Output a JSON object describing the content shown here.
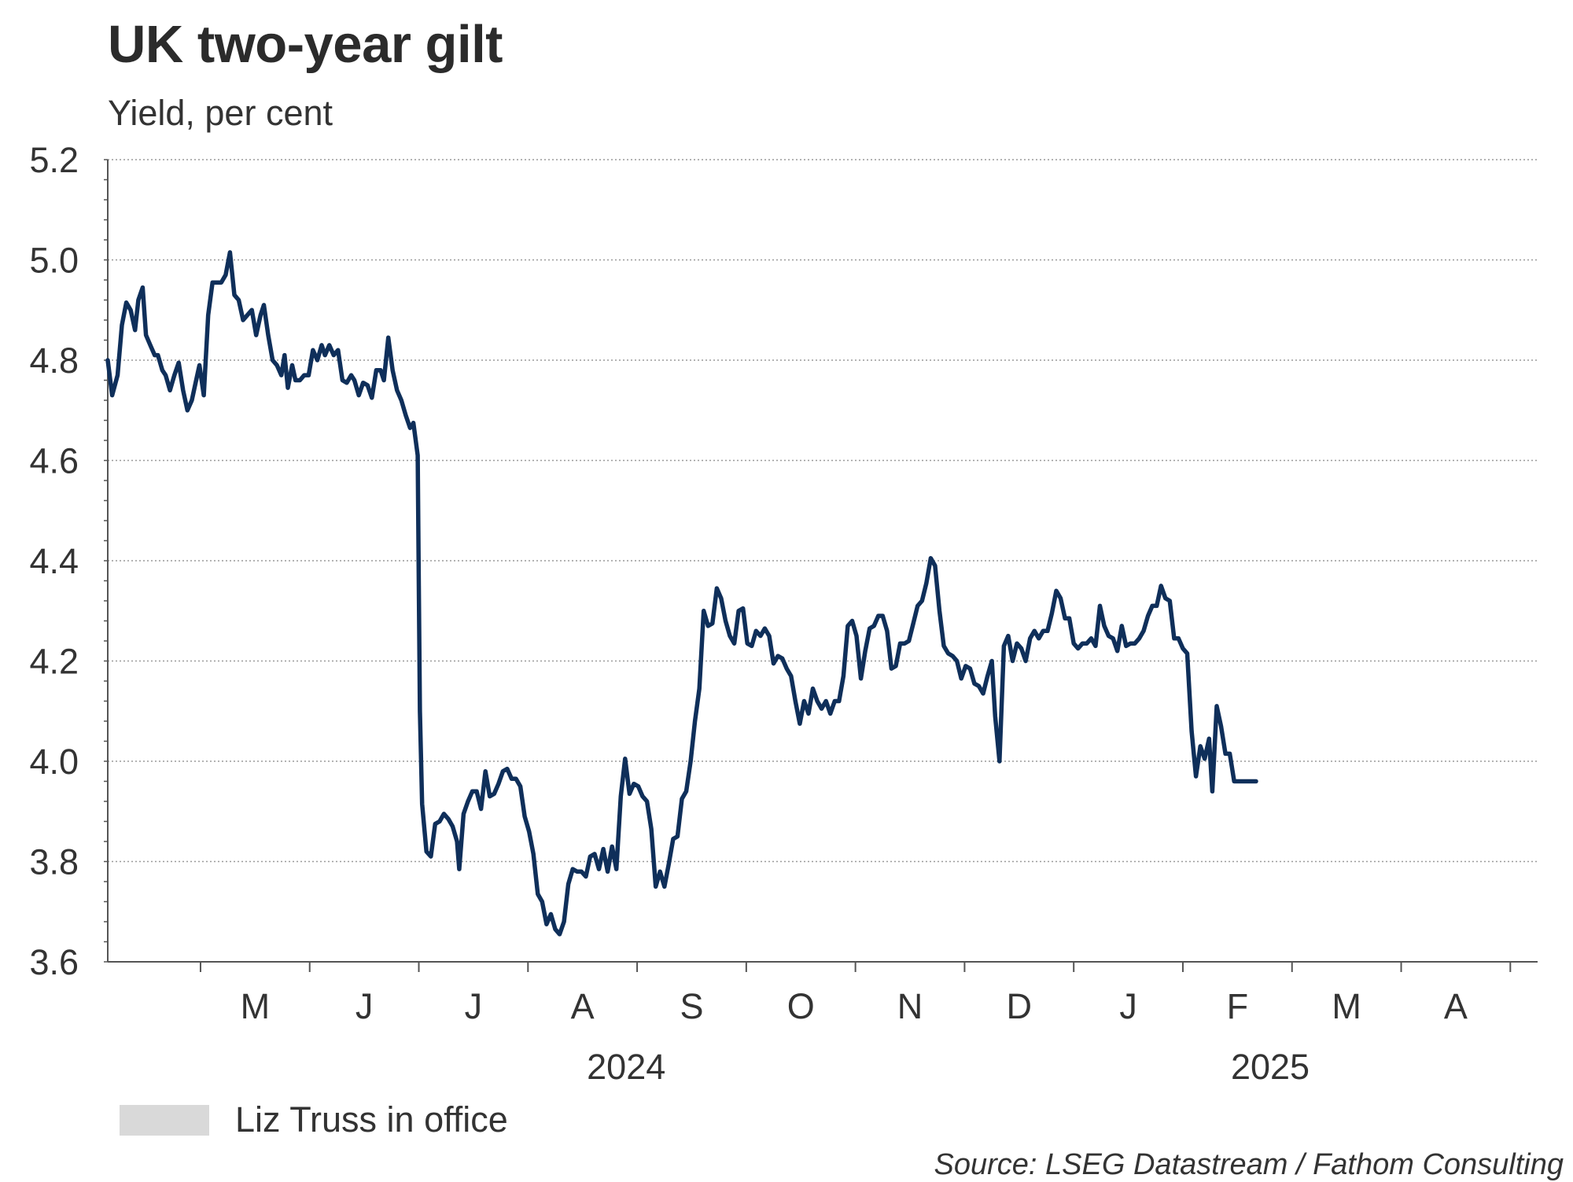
{
  "title": "UK two-year gilt",
  "subtitle": "Yield, per cent",
  "legend": {
    "label": "Liz Truss in office",
    "swatch_color": "#d9d9d9"
  },
  "source": "Source: LSEG Datastream / Fathom Consulting",
  "chart_data": {
    "type": "line",
    "title": "UK two-year gilt",
    "ylabel": "Yield, per cent",
    "xlabel": "",
    "ylim": [
      3.6,
      5.2
    ],
    "yticks": [
      3.6,
      3.8,
      4.0,
      4.2,
      4.4,
      4.6,
      4.8,
      5.0,
      5.2
    ],
    "ytick_labels": [
      "3.6",
      "3.8",
      "4.0",
      "4.2",
      "4.4",
      "4.6",
      "4.8",
      "5.0",
      "5.2"
    ],
    "month_labels": [
      {
        "label": "M",
        "x": 1.0
      },
      {
        "label": "J",
        "x": 2.0
      },
      {
        "label": "J",
        "x": 3.0
      },
      {
        "label": "A",
        "x": 4.0
      },
      {
        "label": "S",
        "x": 5.0
      },
      {
        "label": "O",
        "x": 6.0
      },
      {
        "label": "N",
        "x": 7.0
      },
      {
        "label": "D",
        "x": 8.0
      },
      {
        "label": "J",
        "x": 9.0
      },
      {
        "label": "F",
        "x": 10.0
      },
      {
        "label": "M",
        "x": 11.0
      },
      {
        "label": "A",
        "x": 12.0
      }
    ],
    "year_labels": [
      {
        "label": "2024",
        "x": 4.4
      },
      {
        "label": "2025",
        "x": 10.3
      }
    ],
    "xlim": [
      -0.35,
      12.75
    ],
    "grid": true,
    "line_color": "#0f2f5a",
    "series": [
      {
        "name": "UK two-year gilt yield",
        "points": [
          [
            -0.35,
            4.8
          ],
          [
            -0.31,
            4.73
          ],
          [
            -0.26,
            4.77
          ],
          [
            -0.22,
            4.87
          ],
          [
            -0.18,
            4.915
          ],
          [
            -0.14,
            4.9
          ],
          [
            -0.1,
            4.86
          ],
          [
            -0.07,
            4.92
          ],
          [
            -0.03,
            4.945
          ],
          [
            0.0,
            4.85
          ],
          [
            0.04,
            4.83
          ],
          [
            0.08,
            4.81
          ],
          [
            0.11,
            4.81
          ],
          [
            0.15,
            4.78
          ],
          [
            0.18,
            4.77
          ],
          [
            0.22,
            4.74
          ],
          [
            0.26,
            4.77
          ],
          [
            0.3,
            4.795
          ],
          [
            0.34,
            4.74
          ],
          [
            0.38,
            4.7
          ],
          [
            0.42,
            4.72
          ],
          [
            0.46,
            4.76
          ],
          [
            0.49,
            4.79
          ],
          [
            0.53,
            4.73
          ],
          [
            0.57,
            4.89
          ],
          [
            0.61,
            4.955
          ],
          [
            0.65,
            4.955
          ],
          [
            0.69,
            4.955
          ],
          [
            0.73,
            4.97
          ],
          [
            0.77,
            5.015
          ],
          [
            0.81,
            4.93
          ],
          [
            0.85,
            4.92
          ],
          [
            0.89,
            4.88
          ],
          [
            0.93,
            4.89
          ],
          [
            0.97,
            4.9
          ],
          [
            1.01,
            4.85
          ],
          [
            1.05,
            4.89
          ],
          [
            1.08,
            4.91
          ],
          [
            1.12,
            4.85
          ],
          [
            1.16,
            4.8
          ],
          [
            1.2,
            4.79
          ],
          [
            1.24,
            4.77
          ],
          [
            1.27,
            4.81
          ],
          [
            1.3,
            4.745
          ],
          [
            1.34,
            4.79
          ],
          [
            1.37,
            4.76
          ],
          [
            1.41,
            4.76
          ],
          [
            1.45,
            4.77
          ],
          [
            1.49,
            4.77
          ],
          [
            1.53,
            4.82
          ],
          [
            1.57,
            4.8
          ],
          [
            1.61,
            4.83
          ],
          [
            1.64,
            4.81
          ],
          [
            1.68,
            4.83
          ],
          [
            1.72,
            4.81
          ],
          [
            1.76,
            4.82
          ],
          [
            1.8,
            4.76
          ],
          [
            1.84,
            4.755
          ],
          [
            1.88,
            4.77
          ],
          [
            1.91,
            4.76
          ],
          [
            1.95,
            4.73
          ],
          [
            1.99,
            4.755
          ],
          [
            2.03,
            4.75
          ],
          [
            2.07,
            4.725
          ],
          [
            2.11,
            4.78
          ],
          [
            2.15,
            4.78
          ],
          [
            2.18,
            4.76
          ],
          [
            2.22,
            4.845
          ],
          [
            2.26,
            4.78
          ],
          [
            2.3,
            4.74
          ],
          [
            2.34,
            4.72
          ],
          [
            2.38,
            4.69
          ],
          [
            2.42,
            4.665
          ],
          [
            2.45,
            4.675
          ],
          [
            2.49,
            4.61
          ],
          [
            2.5,
            4.35
          ],
          [
            2.51,
            4.1
          ],
          [
            2.53,
            3.915
          ],
          [
            2.57,
            3.82
          ],
          [
            2.61,
            3.81
          ],
          [
            2.65,
            3.875
          ],
          [
            2.69,
            3.88
          ],
          [
            2.73,
            3.895
          ],
          [
            2.77,
            3.885
          ],
          [
            2.81,
            3.87
          ],
          [
            2.85,
            3.84
          ],
          [
            2.87,
            3.785
          ],
          [
            2.91,
            3.895
          ],
          [
            2.95,
            3.92
          ],
          [
            2.99,
            3.94
          ],
          [
            3.03,
            3.94
          ],
          [
            3.07,
            3.905
          ],
          [
            3.11,
            3.98
          ],
          [
            3.15,
            3.93
          ],
          [
            3.19,
            3.935
          ],
          [
            3.23,
            3.955
          ],
          [
            3.27,
            3.98
          ],
          [
            3.31,
            3.985
          ],
          [
            3.35,
            3.965
          ],
          [
            3.39,
            3.965
          ],
          [
            3.43,
            3.95
          ],
          [
            3.47,
            3.89
          ],
          [
            3.51,
            3.86
          ],
          [
            3.55,
            3.815
          ],
          [
            3.59,
            3.735
          ],
          [
            3.63,
            3.72
          ],
          [
            3.67,
            3.675
          ],
          [
            3.71,
            3.695
          ],
          [
            3.75,
            3.665
          ],
          [
            3.79,
            3.655
          ],
          [
            3.83,
            3.68
          ],
          [
            3.87,
            3.755
          ],
          [
            3.91,
            3.785
          ],
          [
            3.95,
            3.78
          ],
          [
            3.99,
            3.78
          ],
          [
            4.03,
            3.77
          ],
          [
            4.07,
            3.81
          ],
          [
            4.11,
            3.815
          ],
          [
            4.15,
            3.785
          ],
          [
            4.19,
            3.825
          ],
          [
            4.23,
            3.78
          ],
          [
            4.27,
            3.83
          ],
          [
            4.31,
            3.785
          ],
          [
            4.35,
            3.93
          ],
          [
            4.39,
            4.005
          ],
          [
            4.43,
            3.935
          ],
          [
            4.47,
            3.955
          ],
          [
            4.51,
            3.95
          ],
          [
            4.55,
            3.93
          ],
          [
            4.59,
            3.92
          ],
          [
            4.63,
            3.865
          ],
          [
            4.67,
            3.75
          ],
          [
            4.71,
            3.78
          ],
          [
            4.75,
            3.75
          ],
          [
            4.79,
            3.795
          ],
          [
            4.83,
            3.845
          ],
          [
            4.87,
            3.85
          ],
          [
            4.91,
            3.925
          ],
          [
            4.95,
            3.94
          ],
          [
            4.99,
            4.0
          ],
          [
            5.03,
            4.08
          ],
          [
            5.07,
            4.145
          ],
          [
            5.11,
            4.3
          ],
          [
            5.15,
            4.27
          ],
          [
            5.19,
            4.275
          ],
          [
            5.23,
            4.345
          ],
          [
            5.27,
            4.325
          ],
          [
            5.31,
            4.28
          ],
          [
            5.35,
            4.25
          ],
          [
            5.39,
            4.235
          ],
          [
            5.43,
            4.3
          ],
          [
            5.47,
            4.305
          ],
          [
            5.51,
            4.235
          ],
          [
            5.55,
            4.23
          ],
          [
            5.59,
            4.26
          ],
          [
            5.63,
            4.25
          ],
          [
            5.67,
            4.265
          ],
          [
            5.71,
            4.25
          ],
          [
            5.75,
            4.195
          ],
          [
            5.79,
            4.21
          ],
          [
            5.83,
            4.205
          ],
          [
            5.87,
            4.185
          ],
          [
            5.91,
            4.17
          ],
          [
            5.95,
            4.12
          ],
          [
            5.99,
            4.075
          ],
          [
            6.03,
            4.12
          ],
          [
            6.07,
            4.095
          ],
          [
            6.11,
            4.145
          ],
          [
            6.15,
            4.12
          ],
          [
            6.19,
            4.105
          ],
          [
            6.23,
            4.12
          ],
          [
            6.27,
            4.095
          ],
          [
            6.31,
            4.12
          ],
          [
            6.35,
            4.12
          ],
          [
            6.39,
            4.17
          ],
          [
            6.43,
            4.27
          ],
          [
            6.47,
            4.28
          ],
          [
            6.51,
            4.25
          ],
          [
            6.55,
            4.165
          ],
          [
            6.59,
            4.22
          ],
          [
            6.63,
            4.265
          ],
          [
            6.67,
            4.27
          ],
          [
            6.71,
            4.29
          ],
          [
            6.75,
            4.29
          ],
          [
            6.79,
            4.26
          ],
          [
            6.83,
            4.185
          ],
          [
            6.87,
            4.19
          ],
          [
            6.91,
            4.235
          ],
          [
            6.95,
            4.235
          ],
          [
            6.99,
            4.24
          ],
          [
            7.03,
            4.275
          ],
          [
            7.07,
            4.31
          ],
          [
            7.11,
            4.32
          ],
          [
            7.15,
            4.355
          ],
          [
            7.19,
            4.405
          ],
          [
            7.23,
            4.39
          ],
          [
            7.27,
            4.3
          ],
          [
            7.31,
            4.23
          ],
          [
            7.35,
            4.215
          ],
          [
            7.39,
            4.21
          ],
          [
            7.43,
            4.2
          ],
          [
            7.47,
            4.165
          ],
          [
            7.51,
            4.19
          ],
          [
            7.55,
            4.185
          ],
          [
            7.59,
            4.155
          ],
          [
            7.63,
            4.15
          ],
          [
            7.67,
            4.135
          ],
          [
            7.71,
            4.17
          ],
          [
            7.75,
            4.2
          ],
          [
            7.78,
            4.09
          ],
          [
            7.82,
            4.0
          ],
          [
            7.86,
            4.23
          ],
          [
            7.9,
            4.25
          ],
          [
            7.94,
            4.2
          ],
          [
            7.98,
            4.235
          ],
          [
            8.02,
            4.225
          ],
          [
            8.06,
            4.2
          ],
          [
            8.1,
            4.245
          ],
          [
            8.14,
            4.26
          ],
          [
            8.18,
            4.245
          ],
          [
            8.22,
            4.26
          ],
          [
            8.26,
            4.26
          ],
          [
            8.3,
            4.295
          ],
          [
            8.34,
            4.34
          ],
          [
            8.38,
            4.325
          ],
          [
            8.42,
            4.285
          ],
          [
            8.46,
            4.285
          ],
          [
            8.5,
            4.235
          ],
          [
            8.54,
            4.225
          ],
          [
            8.58,
            4.235
          ],
          [
            8.62,
            4.235
          ],
          [
            8.66,
            4.245
          ],
          [
            8.7,
            4.23
          ],
          [
            8.74,
            4.31
          ],
          [
            8.78,
            4.27
          ],
          [
            8.82,
            4.25
          ],
          [
            8.86,
            4.245
          ],
          [
            8.9,
            4.22
          ],
          [
            8.94,
            4.27
          ],
          [
            8.98,
            4.23
          ],
          [
            9.02,
            4.235
          ],
          [
            9.06,
            4.235
          ],
          [
            9.1,
            4.245
          ],
          [
            9.14,
            4.26
          ],
          [
            9.18,
            4.29
          ],
          [
            9.22,
            4.31
          ],
          [
            9.26,
            4.31
          ],
          [
            9.3,
            4.35
          ],
          [
            9.34,
            4.325
          ],
          [
            9.38,
            4.32
          ],
          [
            9.42,
            4.245
          ],
          [
            9.46,
            4.245
          ],
          [
            9.5,
            4.225
          ],
          [
            9.54,
            4.215
          ],
          [
            9.58,
            4.06
          ],
          [
            9.62,
            3.97
          ],
          [
            9.66,
            4.03
          ],
          [
            9.7,
            4.005
          ],
          [
            9.74,
            4.045
          ],
          [
            9.77,
            3.94
          ],
          [
            9.81,
            4.11
          ],
          [
            9.85,
            4.07
          ],
          [
            9.89,
            4.015
          ],
          [
            9.93,
            4.015
          ],
          [
            9.97,
            3.96
          ],
          [
            10.01,
            3.96
          ],
          [
            10.05,
            3.96
          ],
          [
            10.09,
            3.96
          ],
          [
            10.13,
            3.96
          ],
          [
            10.17,
            3.96
          ]
        ]
      }
    ]
  }
}
